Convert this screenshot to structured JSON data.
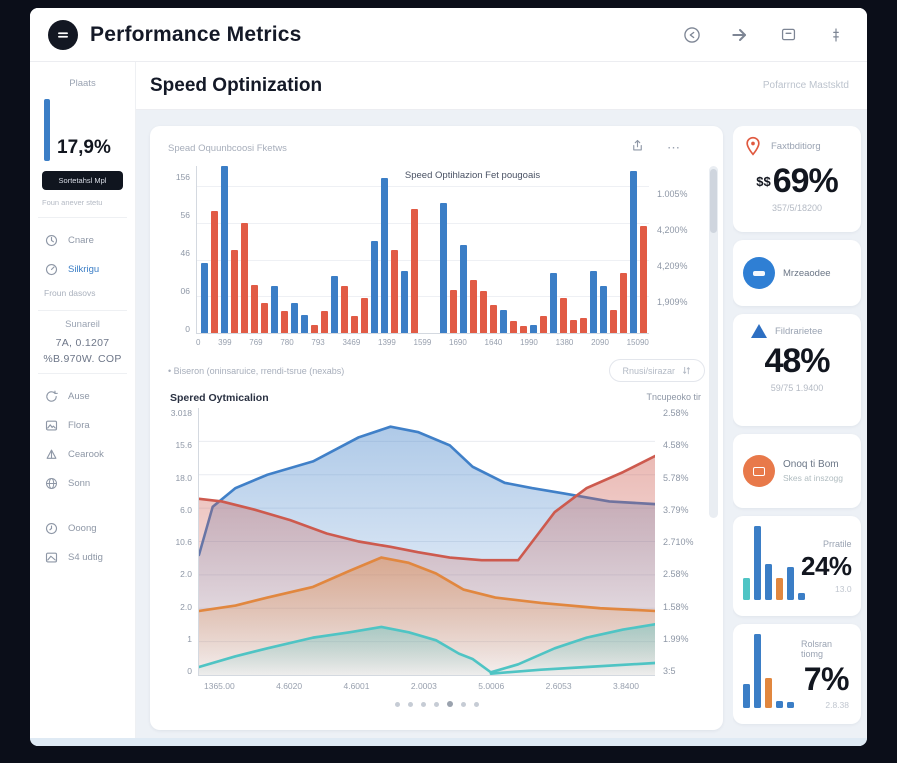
{
  "colors": {
    "blue": "#3b7ec6",
    "red": "#e15b45",
    "orange": "#e1873f",
    "teal": "#4fc4c4",
    "accent_dark": "#10151f"
  },
  "header": {
    "title": "Performance Metrics"
  },
  "sidebar": {
    "stat_label": "Plaats",
    "stat_value": "17,9%",
    "stat_button": "Sortetahsl Mpl",
    "stat_caption": "Foun anever stetu",
    "nav1": [
      {
        "label": "Cnare"
      },
      {
        "label": "Silkrigu"
      }
    ],
    "nav1_caption": "Froun dasovs",
    "summary_title": "Sunareil",
    "summary_line1": "7A, 0.1207",
    "summary_line2": "%B.970W. COP",
    "nav2": [
      {
        "label": "Ause"
      },
      {
        "label": "Flora"
      },
      {
        "label": "Cearook"
      },
      {
        "label": "Sonn"
      }
    ],
    "nav3": [
      {
        "label": "Ooong"
      },
      {
        "label": "S4 udtig"
      }
    ]
  },
  "main": {
    "page_title": "Speed Optinization",
    "page_meta": "Pofarrnce Mastsktd",
    "card_subtitle": "Spead Oquunbcoosi Fketws",
    "card_menu": "⋯",
    "legend_note": "• Biseron (oninsaruice, rrendi-tsrue (nexabs)",
    "filter_button": "Rnusi/sirazar",
    "pagination_dots": 7,
    "active_dot": 4
  },
  "chart_data": [
    {
      "type": "bar",
      "title": "Speed Optihlazion Fet pougoais",
      "y_ticks_left": [
        "156",
        "56",
        "46",
        "06",
        "0"
      ],
      "y_ticks_right": [
        "1.005%",
        "4,200%",
        "4,209%",
        "1,909%"
      ],
      "x_ticks": [
        "0",
        "399",
        "769",
        "780",
        "793",
        "3469",
        "1399",
        "1599",
        "1690",
        "1640",
        "1990",
        "1380",
        "2090",
        "15090"
      ],
      "ylim": [
        0,
        160
      ],
      "bars": [
        {
          "c": "blue",
          "v": 42
        },
        {
          "c": "red",
          "v": 73
        },
        {
          "c": "blue",
          "v": 100
        },
        {
          "c": "red",
          "v": 50
        },
        {
          "c": "red",
          "v": 66
        },
        {
          "c": "red",
          "v": 29
        },
        {
          "c": "red",
          "v": 18
        },
        {
          "c": "blue",
          "v": 28
        },
        {
          "c": "red",
          "v": 13
        },
        {
          "c": "blue",
          "v": 18
        },
        {
          "c": "blue",
          "v": 11
        },
        {
          "c": "red",
          "v": 5
        },
        {
          "c": "red",
          "v": 13
        },
        {
          "c": "blue",
          "v": 34
        },
        {
          "c": "red",
          "v": 28
        },
        {
          "c": "red",
          "v": 10
        },
        {
          "c": "red",
          "v": 21
        },
        {
          "c": "blue",
          "v": 55
        },
        {
          "c": "blue",
          "v": 93
        },
        {
          "c": "red",
          "v": 50
        },
        {
          "c": "blue",
          "v": 37
        },
        {
          "c": "red",
          "v": 74
        },
        {
          "gap": true
        },
        {
          "c": "blue",
          "v": 78
        },
        {
          "c": "red",
          "v": 26
        },
        {
          "c": "blue",
          "v": 53
        },
        {
          "c": "red",
          "v": 32
        },
        {
          "c": "red",
          "v": 25
        },
        {
          "c": "red",
          "v": 17
        },
        {
          "c": "blue",
          "v": 14
        },
        {
          "c": "red",
          "v": 7
        },
        {
          "c": "red",
          "v": 4
        },
        {
          "c": "blue",
          "v": 5
        },
        {
          "c": "red",
          "v": 10
        },
        {
          "c": "blue",
          "v": 36
        },
        {
          "c": "red",
          "v": 21
        },
        {
          "c": "red",
          "v": 8
        },
        {
          "c": "red",
          "v": 9
        },
        {
          "c": "blue",
          "v": 37
        },
        {
          "c": "blue",
          "v": 28
        },
        {
          "c": "red",
          "v": 14
        },
        {
          "c": "red",
          "v": 36
        },
        {
          "c": "blue",
          "v": 97
        },
        {
          "c": "red",
          "v": 64
        }
      ]
    },
    {
      "type": "area",
      "title": "Spered Oytmicalion",
      "right_title": "Tncupeoko tir",
      "y_ticks_left": [
        "3.018",
        "15.6",
        "18.0",
        "6.0",
        "10.6",
        "2.0",
        "2.0",
        "1",
        "0"
      ],
      "y_ticks_right": [
        "2.58%",
        "4.58%",
        "5.78%",
        "3.79%",
        "2.710%",
        "2.58%",
        "1.58%",
        "1.99%",
        "3:5"
      ],
      "x_ticks": [
        "1365.00",
        "4.6020",
        "4.6001",
        "2.0003",
        "5.0006",
        "2.6053",
        "3.8400"
      ],
      "ylim": [
        0,
        10
      ],
      "series": [
        {
          "name": "blue-trend",
          "color": "#4080c8",
          "fill": true,
          "points": [
            [
              0,
              4.5
            ],
            [
              3,
              6.3
            ],
            [
              8,
              7.0
            ],
            [
              15,
              7.5
            ],
            [
              25,
              8.0
            ],
            [
              35,
              8.9
            ],
            [
              42,
              9.3
            ],
            [
              48,
              9.1
            ],
            [
              55,
              8.6
            ],
            [
              60,
              7.8
            ],
            [
              67,
              7.2
            ],
            [
              73,
              7.0
            ],
            [
              80,
              6.8
            ],
            [
              90,
              6.5
            ],
            [
              100,
              6.4
            ]
          ]
        },
        {
          "name": "red-trend",
          "color": "#cd5a4e",
          "fill": true,
          "points": [
            [
              0,
              6.6
            ],
            [
              5,
              6.5
            ],
            [
              12,
              6.2
            ],
            [
              20,
              5.8
            ],
            [
              28,
              5.3
            ],
            [
              35,
              5.0
            ],
            [
              42,
              4.8
            ],
            [
              48,
              4.6
            ],
            [
              55,
              4.4
            ],
            [
              62,
              4.3
            ],
            [
              70,
              4.3
            ],
            [
              78,
              6.1
            ],
            [
              85,
              7.0
            ],
            [
              93,
              7.6
            ],
            [
              100,
              8.2
            ]
          ]
        },
        {
          "name": "orange-trend",
          "color": "#e1873f",
          "fill": true,
          "points": [
            [
              0,
              2.4
            ],
            [
              8,
              2.6
            ],
            [
              15,
              2.9
            ],
            [
              25,
              3.3
            ],
            [
              33,
              3.9
            ],
            [
              40,
              4.4
            ],
            [
              46,
              4.2
            ],
            [
              52,
              3.8
            ],
            [
              58,
              3.2
            ],
            [
              65,
              2.9
            ],
            [
              75,
              2.7
            ],
            [
              88,
              2.5
            ],
            [
              100,
              2.4
            ]
          ]
        },
        {
          "name": "teal-trend",
          "color": "#4fc4c4",
          "fill": true,
          "points": [
            [
              0,
              0.3
            ],
            [
              8,
              0.7
            ],
            [
              15,
              1.0
            ],
            [
              25,
              1.4
            ],
            [
              33,
              1.6
            ],
            [
              40,
              1.8
            ],
            [
              46,
              1.6
            ],
            [
              52,
              1.3
            ],
            [
              57,
              0.8
            ],
            [
              60,
              0.6
            ],
            [
              64,
              0.1
            ],
            [
              70,
              0.4
            ],
            [
              78,
              1.0
            ],
            [
              85,
              1.4
            ],
            [
              93,
              1.7
            ],
            [
              100,
              1.9
            ]
          ]
        },
        {
          "name": "teal-trend-low",
          "color": "#4fc4c4",
          "fill": false,
          "points": [
            [
              64,
              0.05
            ],
            [
              75,
              0.2
            ],
            [
              85,
              0.3
            ],
            [
              100,
              0.45
            ]
          ]
        }
      ]
    }
  ],
  "right_panel": {
    "cards": [
      {
        "label": "Faxtbditiorg",
        "prefix": "$$",
        "value": "69%",
        "sub": "357/5/18200"
      },
      {
        "label": "Mrzeaodee"
      },
      {
        "label": "Fildrarietee",
        "value": "48%",
        "sub": "59/75 1.9400"
      },
      {
        "label": "Onoq ti Bom",
        "sub": "Skes at inszogg"
      },
      {
        "label": "Prratile",
        "value": "24%",
        "sub": "13.0",
        "bars": [
          {
            "c": "teal",
            "v": 30
          },
          {
            "c": "blue",
            "v": 100
          },
          {
            "c": "blue",
            "v": 48
          },
          {
            "c": "orange",
            "v": 30
          },
          {
            "c": "blue",
            "v": 45
          },
          {
            "c": "blue",
            "v": 10
          }
        ]
      },
      {
        "label": "Rolsran tiomg",
        "value": "7%",
        "sub": "2.8.38",
        "bars": [
          {
            "c": "blue",
            "v": 32
          },
          {
            "c": "blue",
            "v": 100
          },
          {
            "c": "orange",
            "v": 40
          },
          {
            "c": "blue",
            "v": 9
          },
          {
            "c": "blue",
            "v": 8
          }
        ]
      }
    ]
  }
}
